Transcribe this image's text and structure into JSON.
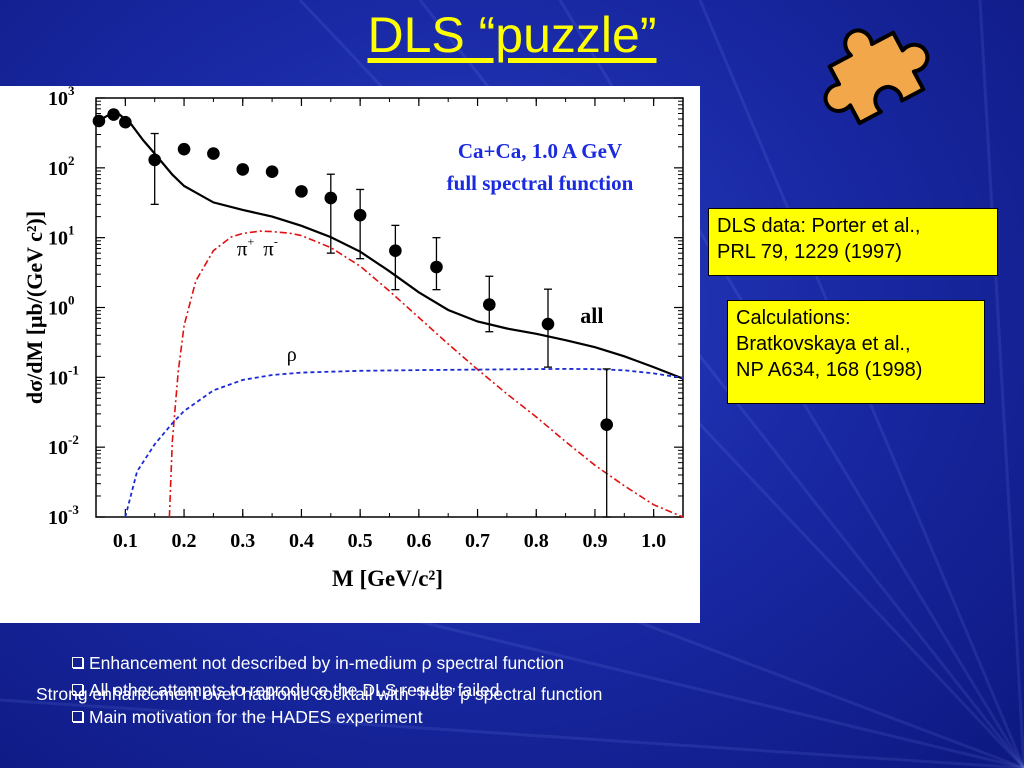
{
  "slide": {
    "title": "DLS “puzzle”"
  },
  "reference_boxes": [
    {
      "lines": [
        "DLS data: Porter et al.,",
        "PRL 79, 1229 (1997)"
      ]
    },
    {
      "lines": [
        "Calculations:",
        "Bratkovskaya et al.,",
        "NP A634, 168 (1998)"
      ]
    }
  ],
  "bullets": [
    "Enhancement not described by in-medium  ρ spectral function",
    "All other attempts to reproduce the DLS results failed",
    "Main motivation for the HADES experiment"
  ],
  "overlay_text": "Strong enhancement over hadronic cocktail with “free” ρ spectral function",
  "colors": {
    "title": "#ffff00",
    "background": "#1a2aa6",
    "box_fill": "#ffff00",
    "plot_annotation_blue": "#1a2ae0",
    "pipi_curve": "#e01010",
    "rho_curve": "#1a2ad8",
    "puzzle_fill": "#f2a84a"
  },
  "icons": [
    "puzzle-piece-icon",
    "checkbox-bullet-icon"
  ],
  "chart_data": {
    "type": "line",
    "title": "",
    "annotation_lines": [
      "Ca+Ca,  1.0 A GeV",
      "full spectral function"
    ],
    "xlabel": "M [GeV/c²]",
    "ylabel": "dσ/dM  [μb/(GeV c²)]",
    "xlim": [
      0.05,
      1.05
    ],
    "ylim_log10": [
      -3,
      3
    ],
    "y_scale": "log",
    "x_ticks": [
      "0.1",
      "0.2",
      "0.3",
      "0.4",
      "0.5",
      "0.6",
      "0.7",
      "0.8",
      "0.9",
      "1.0"
    ],
    "y_ticks": [
      {
        "exp": -3,
        "label": "10",
        "sup": "-3"
      },
      {
        "exp": -2,
        "label": "10",
        "sup": "-2"
      },
      {
        "exp": -1,
        "label": "10",
        "sup": "-1"
      },
      {
        "exp": 0,
        "label": "10",
        "sup": "0"
      },
      {
        "exp": 1,
        "label": "10",
        "sup": "1"
      },
      {
        "exp": 2,
        "label": "10",
        "sup": "2"
      },
      {
        "exp": 3,
        "label": "10",
        "sup": "3"
      }
    ],
    "series": [
      {
        "name": "all",
        "style": "solid",
        "x": [
          0.05,
          0.07,
          0.09,
          0.11,
          0.13,
          0.15,
          0.18,
          0.2,
          0.25,
          0.3,
          0.35,
          0.4,
          0.45,
          0.5,
          0.55,
          0.6,
          0.65,
          0.7,
          0.75,
          0.8,
          0.85,
          0.9,
          0.95,
          1.0,
          1.05
        ],
        "y": [
          450,
          560,
          580,
          420,
          250,
          160,
          80,
          55,
          32,
          25,
          20,
          14.8,
          10.2,
          6.3,
          3.3,
          1.65,
          0.92,
          0.63,
          0.5,
          0.42,
          0.34,
          0.27,
          0.2,
          0.14,
          0.096
        ]
      },
      {
        "name": "π⁺π⁻",
        "style": "dash-dot",
        "x": [
          0.175,
          0.18,
          0.19,
          0.2,
          0.22,
          0.25,
          0.28,
          0.3,
          0.33,
          0.35,
          0.38,
          0.4,
          0.45,
          0.5,
          0.55,
          0.6,
          0.65,
          0.7,
          0.75,
          0.8,
          0.85,
          0.9,
          0.95,
          1.0,
          1.05
        ],
        "y": [
          0.001,
          0.012,
          0.12,
          0.55,
          2.4,
          6.5,
          10.2,
          11.5,
          12.4,
          12.2,
          11.6,
          10.7,
          7.2,
          3.9,
          1.72,
          0.72,
          0.3,
          0.13,
          0.058,
          0.027,
          0.012,
          0.0055,
          0.0028,
          0.0015,
          0.0009
        ]
      },
      {
        "name": "ρ",
        "style": "dashed",
        "x": [
          0.1,
          0.12,
          0.15,
          0.18,
          0.2,
          0.25,
          0.3,
          0.35,
          0.4,
          0.5,
          0.6,
          0.7,
          0.8,
          0.85,
          0.9,
          0.95,
          1.0,
          1.05
        ],
        "y": [
          0.001,
          0.0045,
          0.011,
          0.022,
          0.033,
          0.065,
          0.092,
          0.108,
          0.117,
          0.124,
          0.127,
          0.129,
          0.131,
          0.132,
          0.131,
          0.126,
          0.114,
          0.098
        ]
      }
    ],
    "data_points": {
      "name": "DLS data",
      "x": [
        0.055,
        0.08,
        0.1,
        0.15,
        0.2,
        0.25,
        0.3,
        0.35,
        0.4,
        0.45,
        0.5,
        0.56,
        0.63,
        0.72,
        0.82,
        0.92
      ],
      "y": [
        470,
        580,
        450,
        130,
        185,
        160,
        95,
        88,
        46,
        37,
        21,
        6.5,
        3.8,
        1.1,
        0.58,
        0.021
      ],
      "err_low": [
        0,
        0,
        0,
        100,
        0,
        0,
        0,
        0,
        0,
        31,
        16,
        4.7,
        2.0,
        0.65,
        0.44,
        0.0205
      ],
      "err_high": [
        0,
        0,
        0,
        180,
        0,
        0,
        0,
        0,
        0,
        44,
        28,
        8.5,
        6.2,
        1.7,
        1.25,
        0.111
      ]
    },
    "curve_labels": [
      {
        "text": "all",
        "x": 0.875,
        "y": 0.6
      },
      {
        "text": "ρ",
        "x": 0.375,
        "y": 0.17
      },
      {
        "text": "π",
        "x": 0.29,
        "y": 5.6
      },
      {
        "text": "π",
        "x": 0.335,
        "y": 5.6
      }
    ]
  }
}
